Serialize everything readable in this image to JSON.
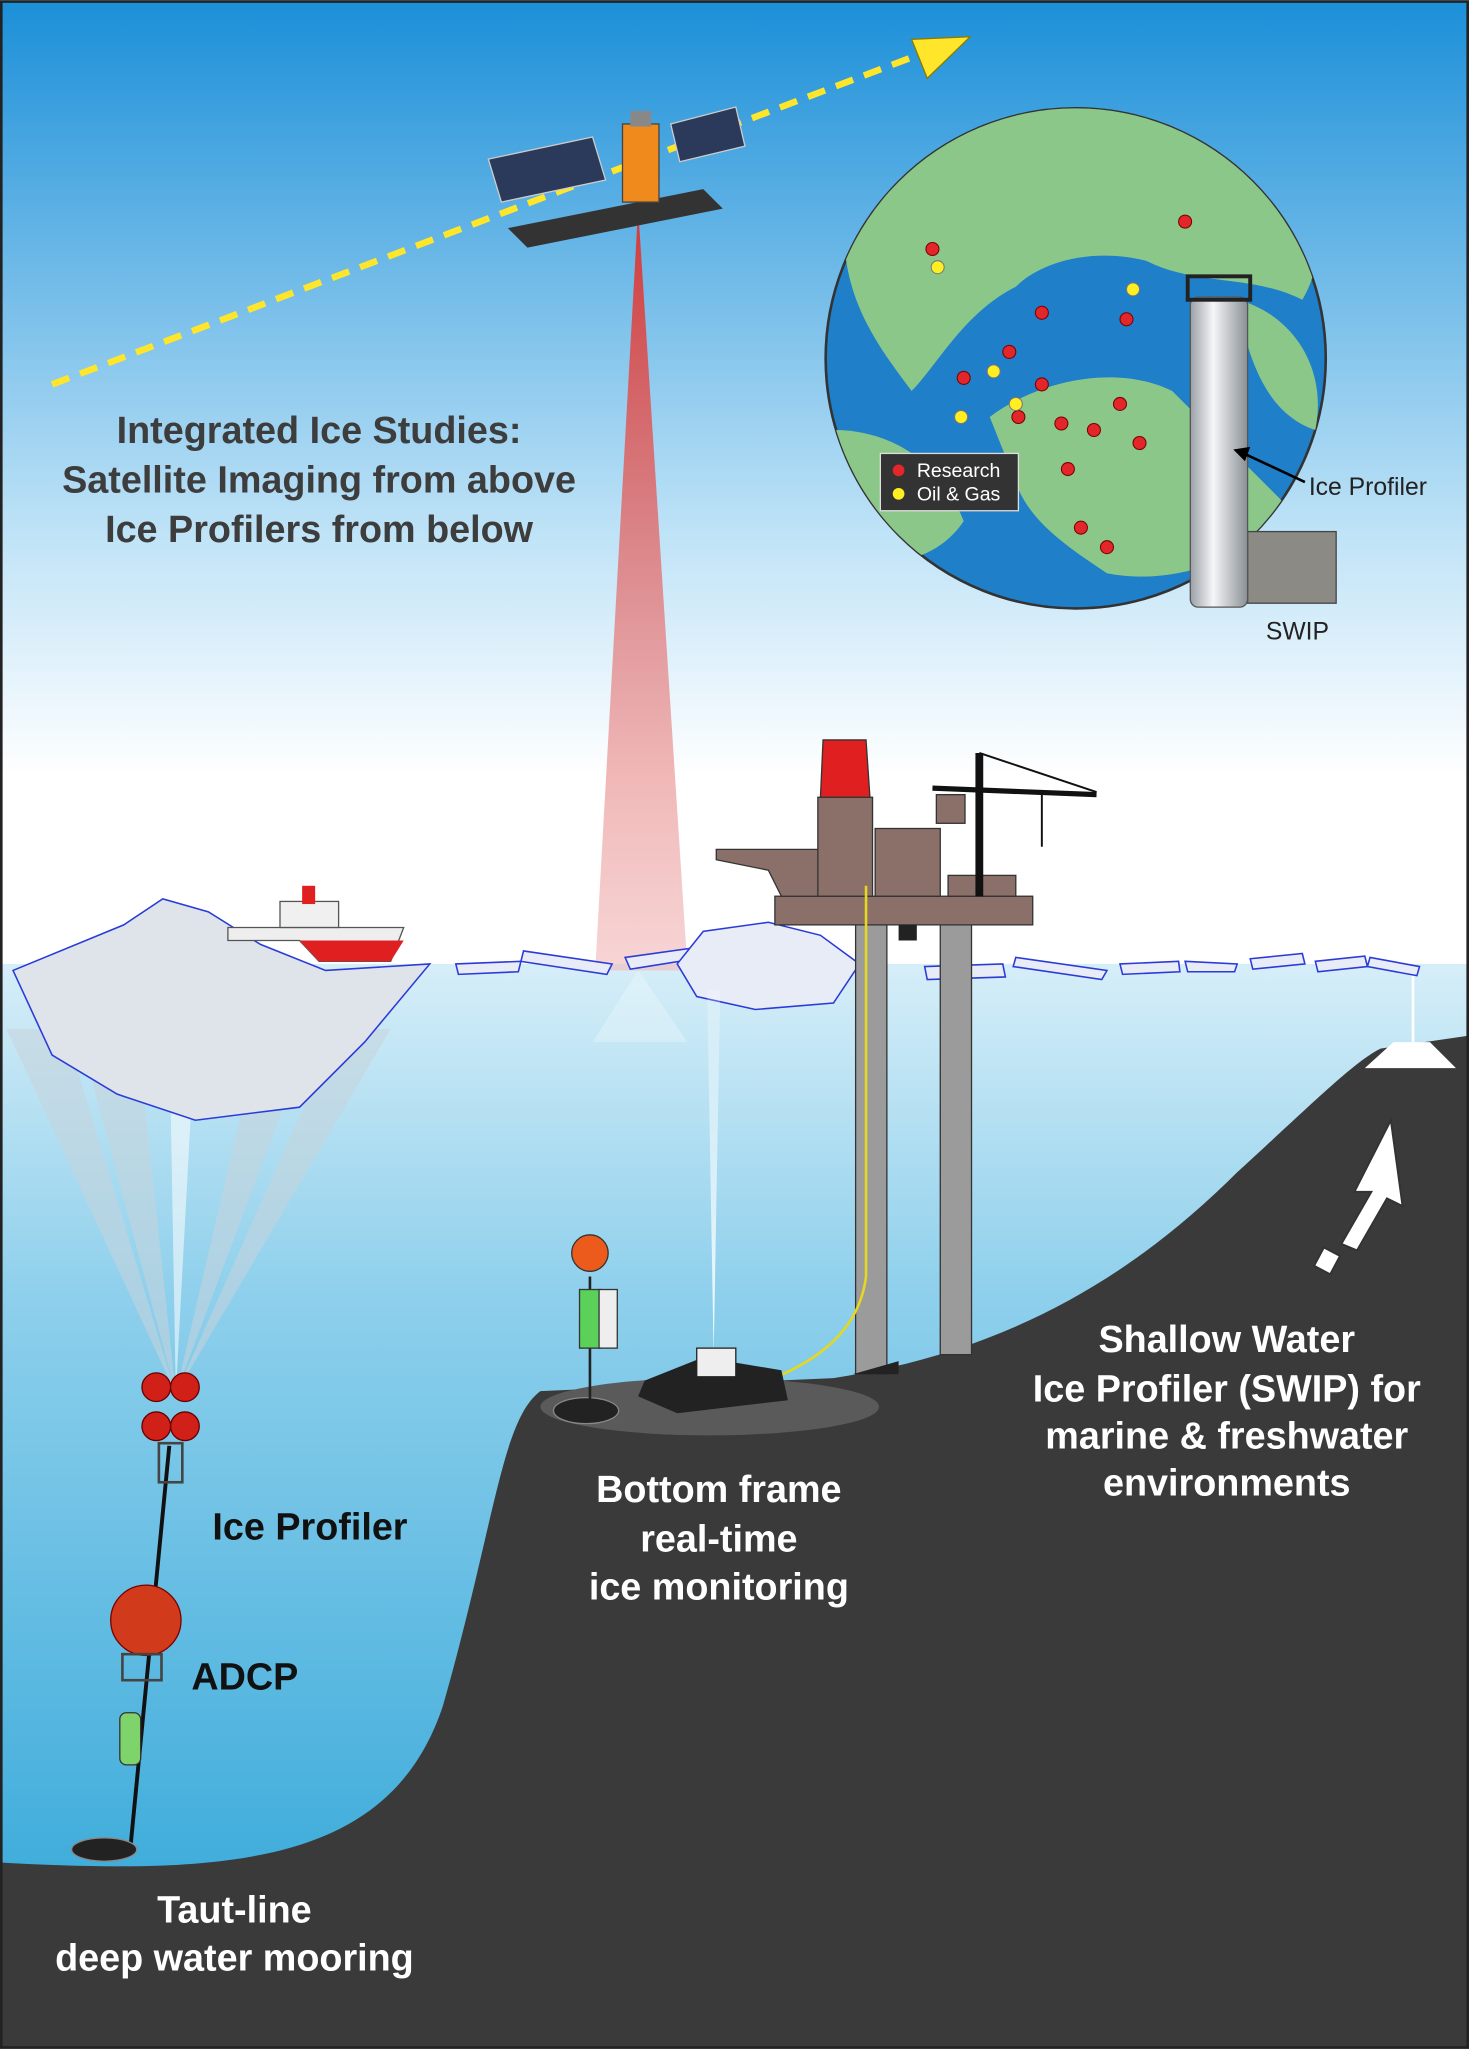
{
  "title": {
    "lines": [
      "Integrated Ice Studies:",
      "Satellite Imaging from above",
      "Ice Profilers from below"
    ]
  },
  "globe": {
    "legend": [
      "Research",
      "Oil & Gas"
    ],
    "callouts": [
      "Ice Profiler",
      "SWIP"
    ]
  },
  "labels": {
    "ice_profiler": "Ice Profiler",
    "adcp": "ADCP",
    "taut_line": [
      "Taut-line",
      "deep water mooring"
    ],
    "bottom_frame": [
      "Bottom frame",
      "real-time",
      "ice monitoring"
    ],
    "swip": [
      "Shallow Water",
      "Ice Profiler (SWIP) for",
      "marine & freshwater",
      "environments"
    ]
  }
}
